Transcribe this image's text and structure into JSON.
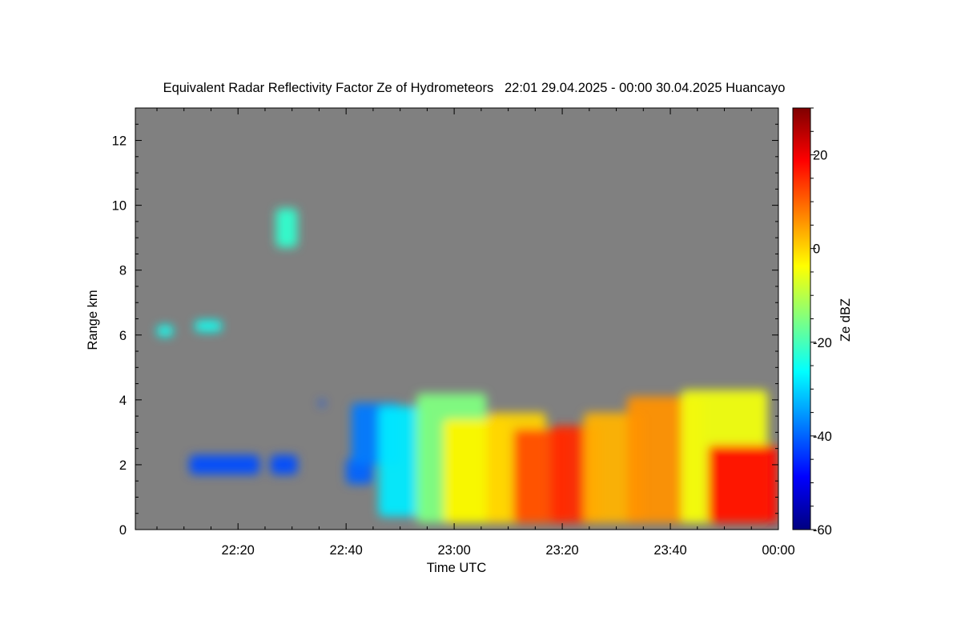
{
  "chart_data": {
    "type": "heatmap",
    "title": "Equivalent Radar Reflectivity Factor Ze of Hydrometeors   22:01 29.04.2025 - 00:00 30.04.2025 Huancayo",
    "xlabel": "Time UTC",
    "ylabel": "Range km",
    "colorbar_label": "Ze dBZ",
    "x_range": [
      "22:01",
      "00:00"
    ],
    "x_ticks": [
      "22:20",
      "22:40",
      "23:00",
      "23:20",
      "23:40",
      "00:00"
    ],
    "y_range": [
      0,
      13
    ],
    "y_ticks": [
      "0",
      "2",
      "4",
      "6",
      "8",
      "10",
      "12"
    ],
    "colorbar_range": [
      -60,
      30
    ],
    "colorbar_ticks": [
      "20",
      "0",
      "-20",
      "-40",
      "-60"
    ],
    "colormap": "jet",
    "background_color": "#808080",
    "echo_regions": [
      {
        "start": "22:05",
        "end": "22:08",
        "range_bottom": 5.95,
        "range_top": 6.3,
        "ze_dbz": -25
      },
      {
        "start": "22:12",
        "end": "22:17",
        "range_bottom": 6.1,
        "range_top": 6.45,
        "ze_dbz": -25
      },
      {
        "start": "22:27",
        "end": "22:31",
        "range_bottom": 8.7,
        "range_top": 9.9,
        "ze_dbz": -22
      },
      {
        "start": "22:11",
        "end": "22:24",
        "range_bottom": 1.7,
        "range_top": 2.3,
        "ze_dbz": -42
      },
      {
        "start": "22:26",
        "end": "22:31",
        "range_bottom": 1.7,
        "range_top": 2.3,
        "ze_dbz": -42
      },
      {
        "start": "22:35",
        "end": "22:36",
        "range_bottom": 3.8,
        "range_top": 4.0,
        "ze_dbz": -42
      },
      {
        "start": "22:40",
        "end": "22:45",
        "range_bottom": 1.4,
        "range_top": 2.2,
        "ze_dbz": -40
      },
      {
        "start": "22:41",
        "end": "22:50",
        "range_bottom": 2.0,
        "range_top": 3.9,
        "ze_dbz": -38
      },
      {
        "start": "22:46",
        "end": "22:55",
        "range_bottom": 0.4,
        "range_top": 3.8,
        "ze_dbz": -28
      },
      {
        "start": "22:53",
        "end": "23:06",
        "range_bottom": 0.2,
        "range_top": 4.2,
        "ze_dbz": -15
      },
      {
        "start": "22:58",
        "end": "23:10",
        "range_bottom": 0.2,
        "range_top": 3.4,
        "ze_dbz": -3
      },
      {
        "start": "23:06",
        "end": "23:17",
        "range_bottom": 0.2,
        "range_top": 3.6,
        "ze_dbz": 0
      },
      {
        "start": "23:11",
        "end": "23:21",
        "range_bottom": 0.2,
        "range_top": 3.1,
        "ze_dbz": 12
      },
      {
        "start": "23:18",
        "end": "23:27",
        "range_bottom": 0.2,
        "range_top": 3.2,
        "ze_dbz": 15
      },
      {
        "start": "23:24",
        "end": "23:35",
        "range_bottom": 0.2,
        "range_top": 3.6,
        "ze_dbz": 3
      },
      {
        "start": "23:32",
        "end": "23:46",
        "range_bottom": 0.2,
        "range_top": 4.1,
        "ze_dbz": 6
      },
      {
        "start": "23:42",
        "end": "23:58",
        "range_bottom": 0.2,
        "range_top": 4.3,
        "ze_dbz": -5
      },
      {
        "start": "23:47",
        "end": "00:00",
        "range_bottom": 0.2,
        "range_top": 2.6,
        "ze_dbz": 18
      }
    ]
  }
}
